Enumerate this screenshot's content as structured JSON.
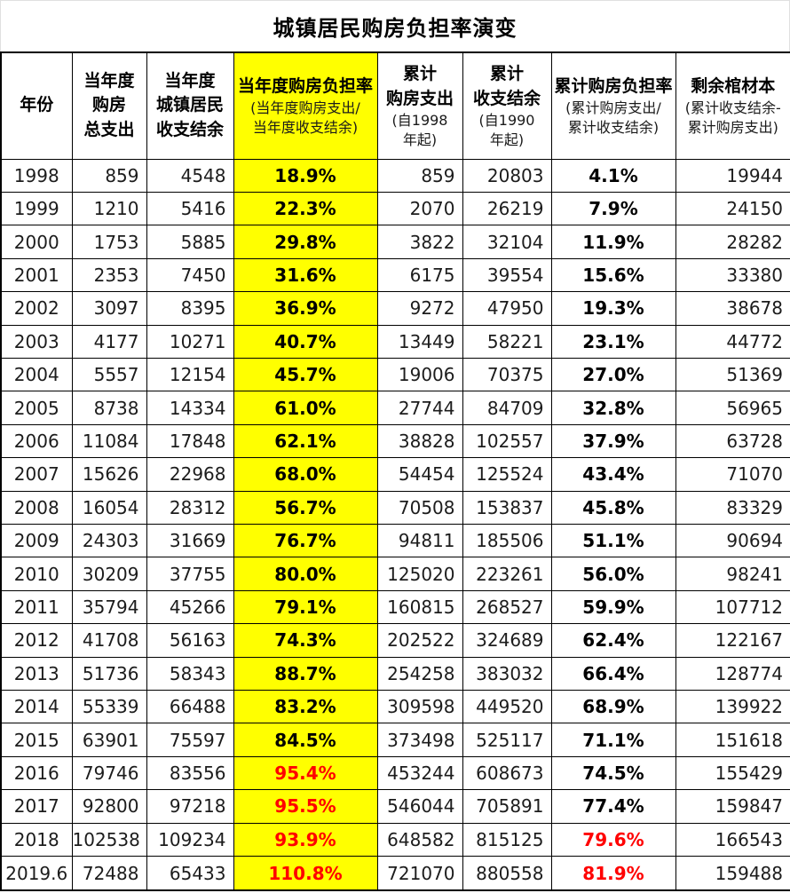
{
  "title": "城镇居民购房负担率演变",
  "colors": {
    "highlight": "#ffff00",
    "alert_red": "#ff0000",
    "border": "#000000",
    "text": "#1c1c1c"
  },
  "chart_data": {
    "type": "table",
    "title": "城镇居民购房负担率演变",
    "columns": [
      {
        "main": [
          "年份"
        ],
        "sub": [],
        "highlight": false
      },
      {
        "main": [
          "当年度",
          "购房",
          "总支出"
        ],
        "sub": [],
        "highlight": false
      },
      {
        "main": [
          "当年度",
          "城镇居民",
          "收支结余"
        ],
        "sub": [],
        "highlight": false
      },
      {
        "main": [
          "当年度购房负担率"
        ],
        "sub": [
          "(当年度购房支出/",
          "当年度收支结余)"
        ],
        "highlight": true
      },
      {
        "main": [
          "累计",
          "购房支出"
        ],
        "sub": [
          "(自1998",
          "年起)"
        ],
        "highlight": false
      },
      {
        "main": [
          "累计",
          "收支结余"
        ],
        "sub": [
          "(自1990",
          "年起)"
        ],
        "highlight": false
      },
      {
        "main": [
          "累计购房负担率"
        ],
        "sub": [
          "(累计购房支出/",
          "累计收支结余)"
        ],
        "highlight": false
      },
      {
        "main": [
          "剩余棺材本"
        ],
        "sub": [
          "(累计收支结余-",
          "累计购房支出)"
        ],
        "highlight": false
      }
    ],
    "rows": [
      {
        "cells": [
          "1998",
          "859",
          "4548",
          "18.9%",
          "859",
          "20803",
          "4.1%",
          "19944"
        ],
        "red_cols": []
      },
      {
        "cells": [
          "1999",
          "1210",
          "5416",
          "22.3%",
          "2070",
          "26219",
          "7.9%",
          "24150"
        ],
        "red_cols": []
      },
      {
        "cells": [
          "2000",
          "1753",
          "5885",
          "29.8%",
          "3822",
          "32104",
          "11.9%",
          "28282"
        ],
        "red_cols": []
      },
      {
        "cells": [
          "2001",
          "2353",
          "7450",
          "31.6%",
          "6175",
          "39554",
          "15.6%",
          "33380"
        ],
        "red_cols": []
      },
      {
        "cells": [
          "2002",
          "3097",
          "8395",
          "36.9%",
          "9272",
          "47950",
          "19.3%",
          "38678"
        ],
        "red_cols": []
      },
      {
        "cells": [
          "2003",
          "4177",
          "10271",
          "40.7%",
          "13449",
          "58221",
          "23.1%",
          "44772"
        ],
        "red_cols": []
      },
      {
        "cells": [
          "2004",
          "5557",
          "12154",
          "45.7%",
          "19006",
          "70375",
          "27.0%",
          "51369"
        ],
        "red_cols": []
      },
      {
        "cells": [
          "2005",
          "8738",
          "14334",
          "61.0%",
          "27744",
          "84709",
          "32.8%",
          "56965"
        ],
        "red_cols": []
      },
      {
        "cells": [
          "2006",
          "11084",
          "17848",
          "62.1%",
          "38828",
          "102557",
          "37.9%",
          "63728"
        ],
        "red_cols": []
      },
      {
        "cells": [
          "2007",
          "15626",
          "22968",
          "68.0%",
          "54454",
          "125524",
          "43.4%",
          "71070"
        ],
        "red_cols": []
      },
      {
        "cells": [
          "2008",
          "16054",
          "28312",
          "56.7%",
          "70508",
          "153837",
          "45.8%",
          "83329"
        ],
        "red_cols": []
      },
      {
        "cells": [
          "2009",
          "24303",
          "31669",
          "76.7%",
          "94811",
          "185506",
          "51.1%",
          "90694"
        ],
        "red_cols": []
      },
      {
        "cells": [
          "2010",
          "30209",
          "37755",
          "80.0%",
          "125020",
          "223261",
          "56.0%",
          "98241"
        ],
        "red_cols": []
      },
      {
        "cells": [
          "2011",
          "35794",
          "45266",
          "79.1%",
          "160815",
          "268527",
          "59.9%",
          "107712"
        ],
        "red_cols": []
      },
      {
        "cells": [
          "2012",
          "41708",
          "56163",
          "74.3%",
          "202522",
          "324689",
          "62.4%",
          "122167"
        ],
        "red_cols": []
      },
      {
        "cells": [
          "2013",
          "51736",
          "58343",
          "88.7%",
          "254258",
          "383032",
          "66.4%",
          "128774"
        ],
        "red_cols": []
      },
      {
        "cells": [
          "2014",
          "55339",
          "66488",
          "83.2%",
          "309598",
          "449520",
          "68.9%",
          "139922"
        ],
        "red_cols": []
      },
      {
        "cells": [
          "2015",
          "63901",
          "75597",
          "84.5%",
          "373498",
          "525117",
          "71.1%",
          "151618"
        ],
        "red_cols": []
      },
      {
        "cells": [
          "2016",
          "79746",
          "83556",
          "95.4%",
          "453244",
          "608673",
          "74.5%",
          "155429"
        ],
        "red_cols": [
          3
        ]
      },
      {
        "cells": [
          "2017",
          "92800",
          "97218",
          "95.5%",
          "546044",
          "705891",
          "77.4%",
          "159847"
        ],
        "red_cols": [
          3
        ]
      },
      {
        "cells": [
          "2018",
          "102538",
          "109234",
          "93.9%",
          "648582",
          "815125",
          "79.6%",
          "166543"
        ],
        "red_cols": [
          3,
          6
        ]
      },
      {
        "cells": [
          "2019.6",
          "72488",
          "65433",
          "110.8%",
          "721070",
          "880558",
          "81.9%",
          "159488"
        ],
        "red_cols": [
          3,
          6
        ]
      }
    ]
  }
}
